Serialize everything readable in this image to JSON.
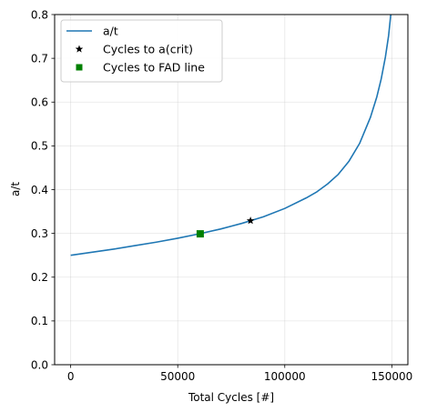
{
  "chart_data": {
    "type": "line",
    "title": "",
    "xlabel": "Total Cycles [#]",
    "ylabel": "a/t",
    "xlim": [
      -7500,
      157500
    ],
    "ylim": [
      0,
      0.8
    ],
    "x_ticks": [
      0,
      50000,
      100000,
      150000
    ],
    "x_tick_labels": [
      "0",
      "50000",
      "100000",
      "150000"
    ],
    "y_ticks": [
      0,
      0.1,
      0.2,
      0.3,
      0.4,
      0.5,
      0.6,
      0.7,
      0.8
    ],
    "y_tick_labels": [
      "0.0",
      "0.1",
      "0.2",
      "0.3",
      "0.4",
      "0.5",
      "0.6",
      "0.7",
      "0.8"
    ],
    "grid": true,
    "legend_position": "top-left",
    "series": [
      {
        "name": "a/t",
        "kind": "line",
        "color": "#1f77b4",
        "points": [
          [
            0,
            0.25
          ],
          [
            10000,
            0.257
          ],
          [
            20000,
            0.264
          ],
          [
            30000,
            0.272
          ],
          [
            40000,
            0.28
          ],
          [
            50000,
            0.289
          ],
          [
            60000,
            0.299
          ],
          [
            70000,
            0.31
          ],
          [
            80000,
            0.323
          ],
          [
            90000,
            0.338
          ],
          [
            100000,
            0.357
          ],
          [
            110000,
            0.381
          ],
          [
            115000,
            0.395
          ],
          [
            120000,
            0.413
          ],
          [
            125000,
            0.435
          ],
          [
            130000,
            0.465
          ],
          [
            135000,
            0.506
          ],
          [
            140000,
            0.565
          ],
          [
            143000,
            0.612
          ],
          [
            145000,
            0.652
          ],
          [
            147000,
            0.703
          ],
          [
            148500,
            0.752
          ],
          [
            149300,
            0.79
          ],
          [
            149500,
            0.8
          ]
        ]
      },
      {
        "name": "Cycles to a(crit)",
        "kind": "marker",
        "marker": "star",
        "color": "#000000",
        "points": [
          [
            84000,
            0.329
          ]
        ]
      },
      {
        "name": "Cycles to FAD line",
        "kind": "marker",
        "marker": "square",
        "color": "#008000",
        "points": [
          [
            60500,
            0.299
          ]
        ]
      }
    ]
  }
}
